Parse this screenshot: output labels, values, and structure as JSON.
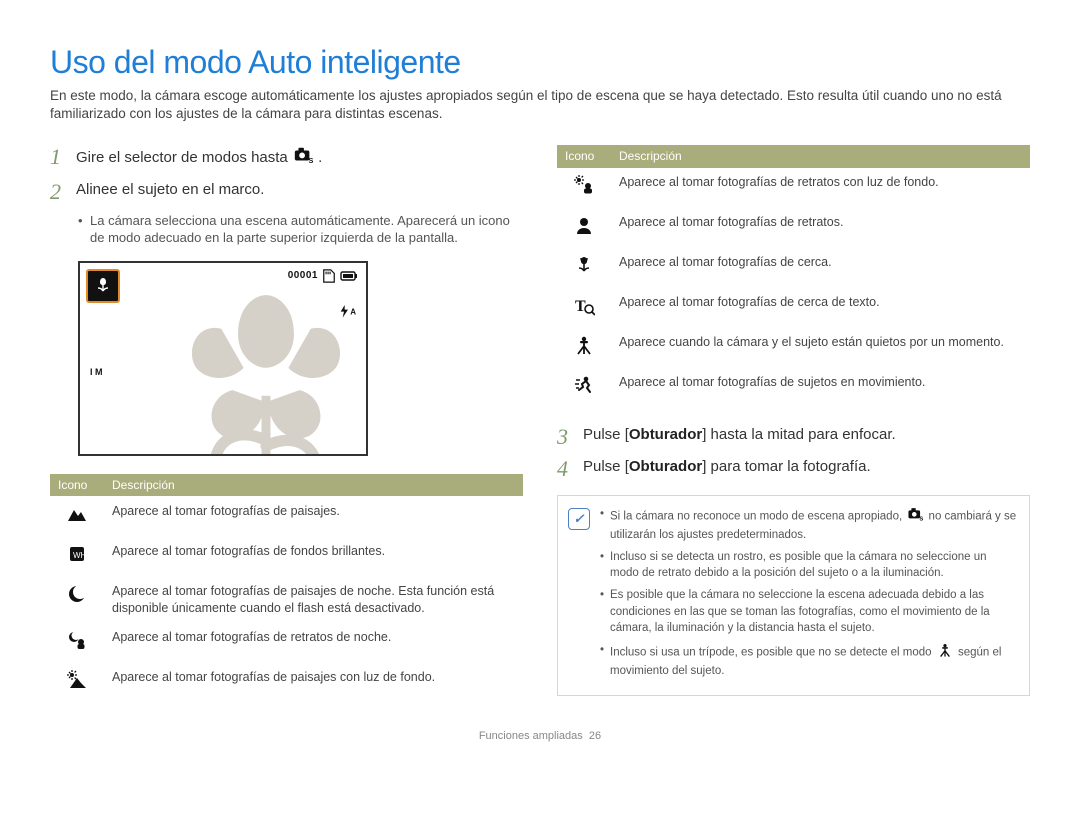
{
  "title": {
    "text": "Uso del modo Auto inteligente",
    "color": "#1f7fd6",
    "fontsize": 32
  },
  "intro": "En este modo, la cámara escoge automáticamente los ajustes apropiados según el tipo de escena que se haya detectado. Esto resulta útil cuando uno no está familiarizado con los ajustes de la cámara para distintas escenas.",
  "steps": {
    "s1": {
      "num": "1",
      "text_a": "Gire el selector de modos hasta ",
      "text_b": ".",
      "color": "#7f9a6b"
    },
    "s2": {
      "num": "2",
      "text": "Alinee el sujeto en el marco.",
      "color": "#7f9a6b",
      "bullet": "La cámara selecciona una escena automáticamente. Aparecerá un icono de modo adecuado en la parte superior izquierda de la pantalla."
    },
    "s3": {
      "num": "3",
      "text_a": "Pulse [",
      "bold": "Obturador",
      "text_b": "] hasta la mitad para enfocar.",
      "color": "#7f9a6b"
    },
    "s4": {
      "num": "4",
      "text_a": "Pulse [",
      "bold": "Obturador",
      "text_b": "] para tomar la fotografía.",
      "color": "#7f9a6b"
    }
  },
  "lcd": {
    "counter": "00001",
    "flash_label": "A",
    "iso_label": "I M",
    "flower_color": "#d5d0c8"
  },
  "table_headers": {
    "icon": "Icono",
    "desc": "Descripción",
    "bg": "#a9ac7b",
    "fg": "#ffffff"
  },
  "left_rows": [
    {
      "id": "landscape",
      "desc": "Aparece al tomar fotografías de paisajes."
    },
    {
      "id": "white",
      "desc": "Aparece al tomar fotografías de fondos brillantes."
    },
    {
      "id": "night",
      "desc": "Aparece al tomar fotografías de paisajes de noche. Esta función está disponible únicamente cuando el flash está desactivado."
    },
    {
      "id": "night-portrait",
      "desc": "Aparece al tomar fotografías de retratos de noche."
    },
    {
      "id": "backlight-landscape",
      "desc": "Aparece al tomar fotografías de paisajes con luz de fondo."
    }
  ],
  "right_rows": [
    {
      "id": "backlight-portrait",
      "desc": "Aparece al tomar fotografías de retratos con luz de fondo."
    },
    {
      "id": "portrait",
      "desc": "Aparece al tomar fotografías de retratos."
    },
    {
      "id": "macro",
      "desc": "Aparece al tomar fotografías de cerca."
    },
    {
      "id": "macro-text",
      "desc": "Aparece al tomar fotografías de cerca de texto."
    },
    {
      "id": "tripod",
      "desc": "Aparece cuando la cámara y el sujeto están quietos por un momento."
    },
    {
      "id": "action",
      "desc": "Aparece al tomar fotografías de sujetos en movimiento."
    }
  ],
  "notes": [
    {
      "pre": "Si la cámara no reconoce un modo de escena apropiado, ",
      "post": " no cambiará y se utilizarán los ajustes predeterminados.",
      "icon": "camera-s"
    },
    {
      "text": "Incluso si se detecta un rostro, es posible que la cámara no seleccione un modo de retrato debido a la posición del sujeto o a la iluminación."
    },
    {
      "text": "Es posible que la cámara no seleccione la escena adecuada debido a las condiciones en las que se toman las fotografías, como el movimiento de la cámara, la iluminación y la distancia hasta el sujeto."
    },
    {
      "pre": "Incluso si usa un trípode, es posible que no se detecte el modo ",
      "post": " según el movimiento del sujeto.",
      "icon": "tripod"
    }
  ],
  "footer": {
    "label": "Funciones ampliadas",
    "page": "26"
  }
}
